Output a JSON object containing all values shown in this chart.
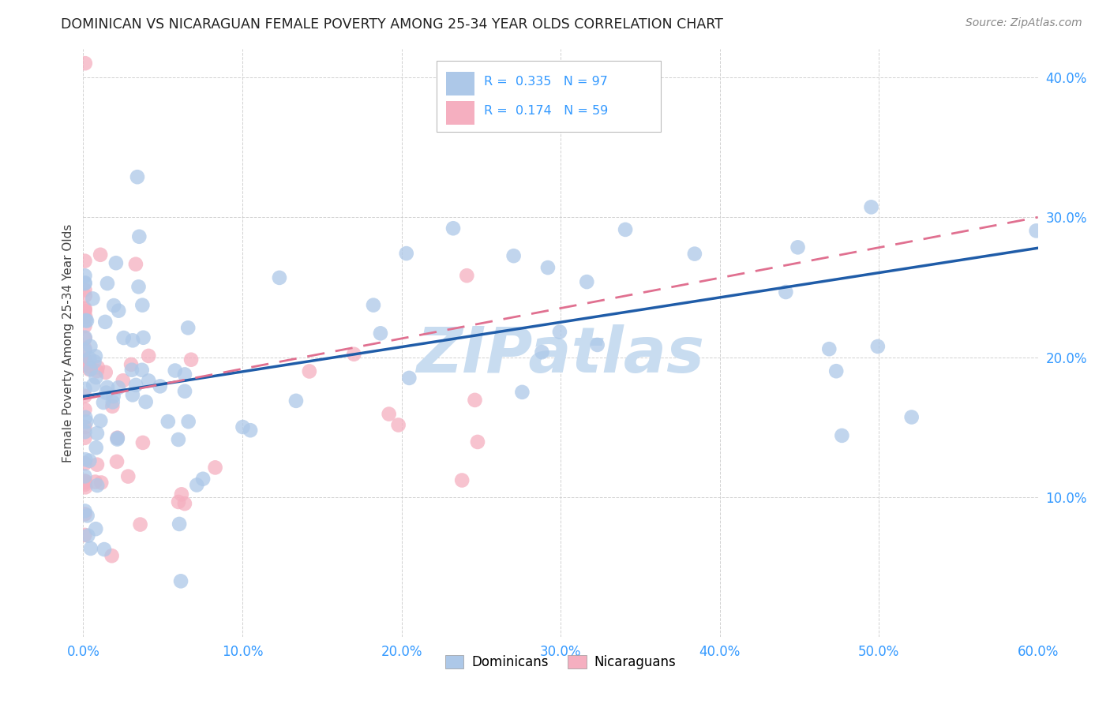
{
  "title": "DOMINICAN VS NICARAGUAN FEMALE POVERTY AMONG 25-34 YEAR OLDS CORRELATION CHART",
  "source": "Source: ZipAtlas.com",
  "ylabel": "Female Poverty Among 25-34 Year Olds",
  "xlim": [
    0.0,
    0.6
  ],
  "ylim": [
    0.0,
    0.42
  ],
  "x_ticks": [
    0.0,
    0.1,
    0.2,
    0.3,
    0.4,
    0.5,
    0.6
  ],
  "y_ticks": [
    0.1,
    0.2,
    0.3,
    0.4
  ],
  "dominican_R": 0.335,
  "dominican_N": 97,
  "nicaraguan_R": 0.174,
  "nicaraguan_N": 59,
  "dominican_color": "#adc8e8",
  "nicaraguan_color": "#f5afc0",
  "dominican_line_color": "#1f5ca8",
  "nicaraguan_line_color": "#e07090",
  "background_color": "#ffffff",
  "watermark": "ZIPatlas",
  "watermark_color": "#c8dcf0",
  "dom_line_start_y": 0.172,
  "dom_line_end_y": 0.278,
  "nic_line_start_y": 0.17,
  "nic_line_end_y": 0.3
}
